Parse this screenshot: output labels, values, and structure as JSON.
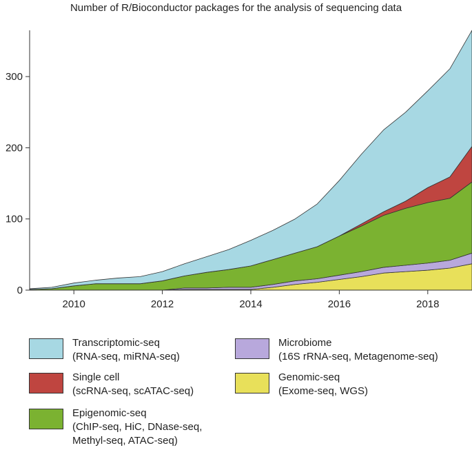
{
  "chart_data": {
    "type": "area",
    "stacked": true,
    "title": "Number of R/Bioconductor packages for the analysis of sequencing data",
    "xlabel": "",
    "ylabel": "",
    "xlim": [
      2009.0,
      2019.0
    ],
    "ylim": [
      0,
      365
    ],
    "x_ticks": [
      2010,
      2012,
      2014,
      2016,
      2018
    ],
    "y_ticks": [
      0,
      100,
      200,
      300
    ],
    "grid": false,
    "legend_placement": "bottom",
    "x": [
      2009.0,
      2009.5,
      2010.0,
      2010.5,
      2011.0,
      2011.5,
      2012.0,
      2012.5,
      2013.0,
      2013.5,
      2014.0,
      2014.5,
      2015.0,
      2015.5,
      2016.0,
      2016.5,
      2017.0,
      2017.5,
      2018.0,
      2018.5,
      2019.0
    ],
    "series": [
      {
        "name": "Genomic-seq",
        "color": "#e8e05a",
        "values": [
          0,
          0,
          0,
          0,
          0,
          0,
          0,
          1,
          1,
          1,
          1,
          4,
          8,
          11,
          15,
          19,
          24,
          26,
          28,
          31,
          37
        ]
      },
      {
        "name": "Microbiome",
        "color": "#b8a8dc",
        "values": [
          0,
          0,
          0,
          0,
          0,
          0,
          0,
          2,
          2,
          3,
          3,
          4,
          5,
          5,
          6,
          7,
          8,
          9,
          10,
          11,
          15
        ]
      },
      {
        "name": "Epigenomic-seq",
        "color": "#7bb231",
        "values": [
          1,
          2,
          6,
          9,
          9,
          9,
          13,
          17,
          22,
          25,
          30,
          35,
          39,
          45,
          55,
          64,
          73,
          80,
          85,
          87,
          100
        ]
      },
      {
        "name": "Single cell",
        "color": "#bf4540",
        "values": [
          0,
          0,
          0,
          0,
          0,
          0,
          0,
          0,
          0,
          0,
          0,
          0,
          0,
          0,
          0,
          3,
          5,
          10,
          21,
          30,
          50
        ]
      },
      {
        "name": "Transcriptomic-seq",
        "color": "#a7d8e3",
        "values": [
          1,
          2,
          4,
          5,
          8,
          10,
          13,
          17,
          22,
          28,
          36,
          41,
          48,
          60,
          78,
          98,
          115,
          125,
          136,
          152,
          163
        ]
      }
    ]
  },
  "legend": {
    "items": [
      {
        "key": "transcriptomic",
        "lines": [
          "Transcriptomic-seq",
          "(RNA-seq, miRNA-seq)"
        ],
        "color": "#a7d8e3"
      },
      {
        "key": "single_cell",
        "lines": [
          "Single cell",
          "(scRNA-seq, scATAC-seq)"
        ],
        "color": "#bf4540"
      },
      {
        "key": "epigenomic",
        "lines": [
          "Epigenomic-seq",
          "(ChIP-seq, HiC, DNase-seq,",
          "Methyl-seq, ATAC-seq)"
        ],
        "color": "#7bb231"
      },
      {
        "key": "microbiome",
        "lines": [
          "Microbiome",
          "(16S rRNA-seq, Metagenome-seq)"
        ],
        "color": "#b8a8dc"
      },
      {
        "key": "genomic",
        "lines": [
          "Genomic-seq",
          "(Exome-seq, WGS)"
        ],
        "color": "#e8e05a"
      }
    ]
  }
}
